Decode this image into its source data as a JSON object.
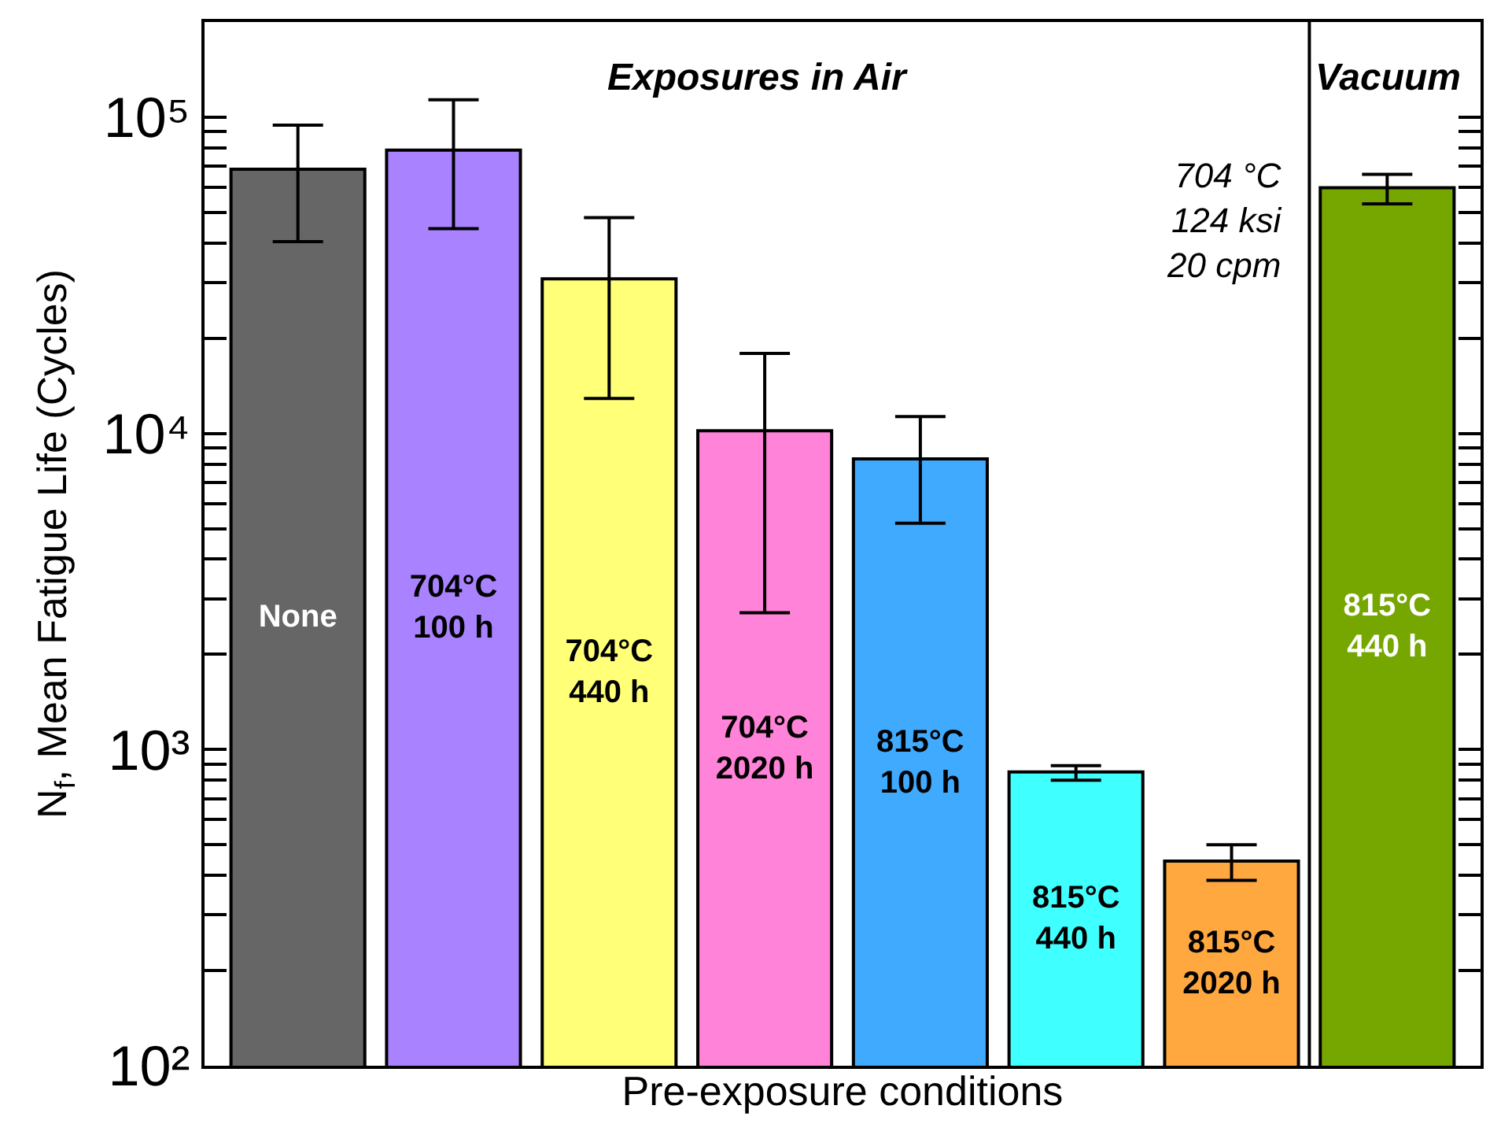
{
  "chart_data": {
    "type": "bar",
    "xlabel": "Pre-exposure conditions",
    "ylabel": "N$_{f}$, Mean Fatigue Life (Cycles)",
    "categories": [
      "None",
      "704°C\n100 h",
      "704°C\n440 h",
      "704°C\n2020 h",
      "815°C\n100 h",
      "815°C\n440 h",
      "815°C\n2020 h",
      "815°C\n440 h"
    ],
    "values": [
      68500,
      78700,
      30800,
      10200,
      8300,
      850,
      444,
      59800
    ],
    "errors": [
      [
        40400,
        94400
      ],
      [
        44400,
        113500
      ],
      [
        12900,
        48100
      ],
      [
        2710,
        17900
      ],
      [
        5200,
        11300
      ],
      [
        800,
        890
      ],
      [
        386,
        500
      ],
      [
        53200,
        66000
      ]
    ],
    "colors": [
      "#666666",
      "#a983ff",
      "#ffff78",
      "#ff83d8",
      "#40aaff",
      "#40ffff",
      "#ffa840",
      "#76a600"
    ],
    "log": "y",
    "ylim": [
      100,
      200000
    ],
    "yticks": [
      {
        "value": 100,
        "label": "10²"
      },
      {
        "value": 200,
        "label": null
      },
      {
        "value": 300,
        "label": null
      },
      {
        "value": 400,
        "label": null
      },
      {
        "value": 500,
        "label": null
      },
      {
        "value": 600,
        "label": null
      },
      {
        "value": 700,
        "label": null
      },
      {
        "value": 800,
        "label": null
      },
      {
        "value": 900,
        "label": null
      },
      {
        "value": 1000,
        "label": "10³"
      },
      {
        "value": 2000,
        "label": null
      },
      {
        "value": 3000,
        "label": null
      },
      {
        "value": 4000,
        "label": null
      },
      {
        "value": 5000,
        "label": null
      },
      {
        "value": 6000,
        "label": null
      },
      {
        "value": 7000,
        "label": null
      },
      {
        "value": 8000,
        "label": null
      },
      {
        "value": 9000,
        "label": null
      },
      {
        "value": 10000,
        "label": "10⁴"
      },
      {
        "value": 20000,
        "label": null
      },
      {
        "value": 30000,
        "label": null
      },
      {
        "value": 40000,
        "label": null
      },
      {
        "value": 50000,
        "label": null
      },
      {
        "value": 60000,
        "label": null
      },
      {
        "value": 70000,
        "label": null
      },
      {
        "value": 80000,
        "label": null
      },
      {
        "value": 90000,
        "label": null
      },
      {
        "value": 100000,
        "label": "10⁵"
      }
    ],
    "tick_labels": "y",
    "annotations": [
      "Exposures in Air",
      "Vacuum",
      "704 °C\n124 ksi\n20 cpm"
    ]
  }
}
